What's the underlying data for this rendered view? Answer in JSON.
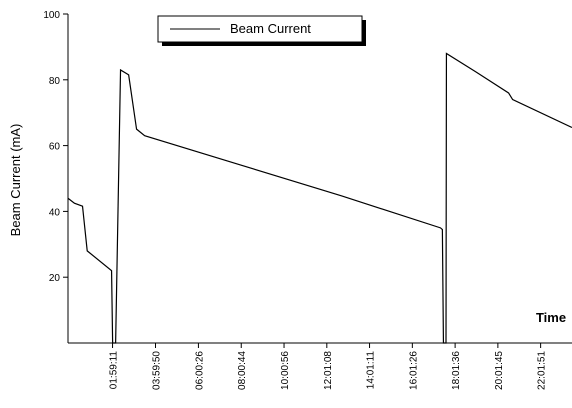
{
  "chart_data": {
    "type": "line",
    "y_label": "Beam Current (mA)",
    "x_label": "Time",
    "legend": "top",
    "xlim": [
      -0.1,
      23.5
    ],
    "xticks": [
      {
        "value": 1.986,
        "label": "01:59:11"
      },
      {
        "value": 3.997,
        "label": "03:59:50"
      },
      {
        "value": 6.007,
        "label": "06:00:26"
      },
      {
        "value": 8.012,
        "label": "08:00:44"
      },
      {
        "value": 10.016,
        "label": "10:00:56"
      },
      {
        "value": 12.019,
        "label": "12:01:08"
      },
      {
        "value": 14.02,
        "label": "14:01:11"
      },
      {
        "value": 16.024,
        "label": "16:01:26"
      },
      {
        "value": 18.027,
        "label": "18:01:36"
      },
      {
        "value": 20.029,
        "label": "20:01:45"
      },
      {
        "value": 22.031,
        "label": "22:01:51"
      }
    ],
    "ylim": [
      0,
      100
    ],
    "yticks": [
      20,
      40,
      60,
      80,
      100
    ],
    "series": [
      {
        "name": "Beam Current",
        "color": "#000000",
        "x": [
          -0.1,
          0.2,
          0.58,
          0.8,
          1.94,
          1.99,
          2.13,
          2.36,
          2.74,
          3.11,
          3.49,
          8.03,
          12.72,
          17.34,
          17.43,
          17.48,
          17.6,
          17.62,
          18.98,
          20.53,
          20.72,
          23.5
        ],
        "values": [
          44,
          42.5,
          41.6,
          28,
          22,
          0,
          0,
          83,
          81.5,
          65,
          63,
          54,
          44.7,
          35,
          34.5,
          0,
          0,
          88,
          82.5,
          76,
          74,
          65.5
        ]
      }
    ]
  }
}
